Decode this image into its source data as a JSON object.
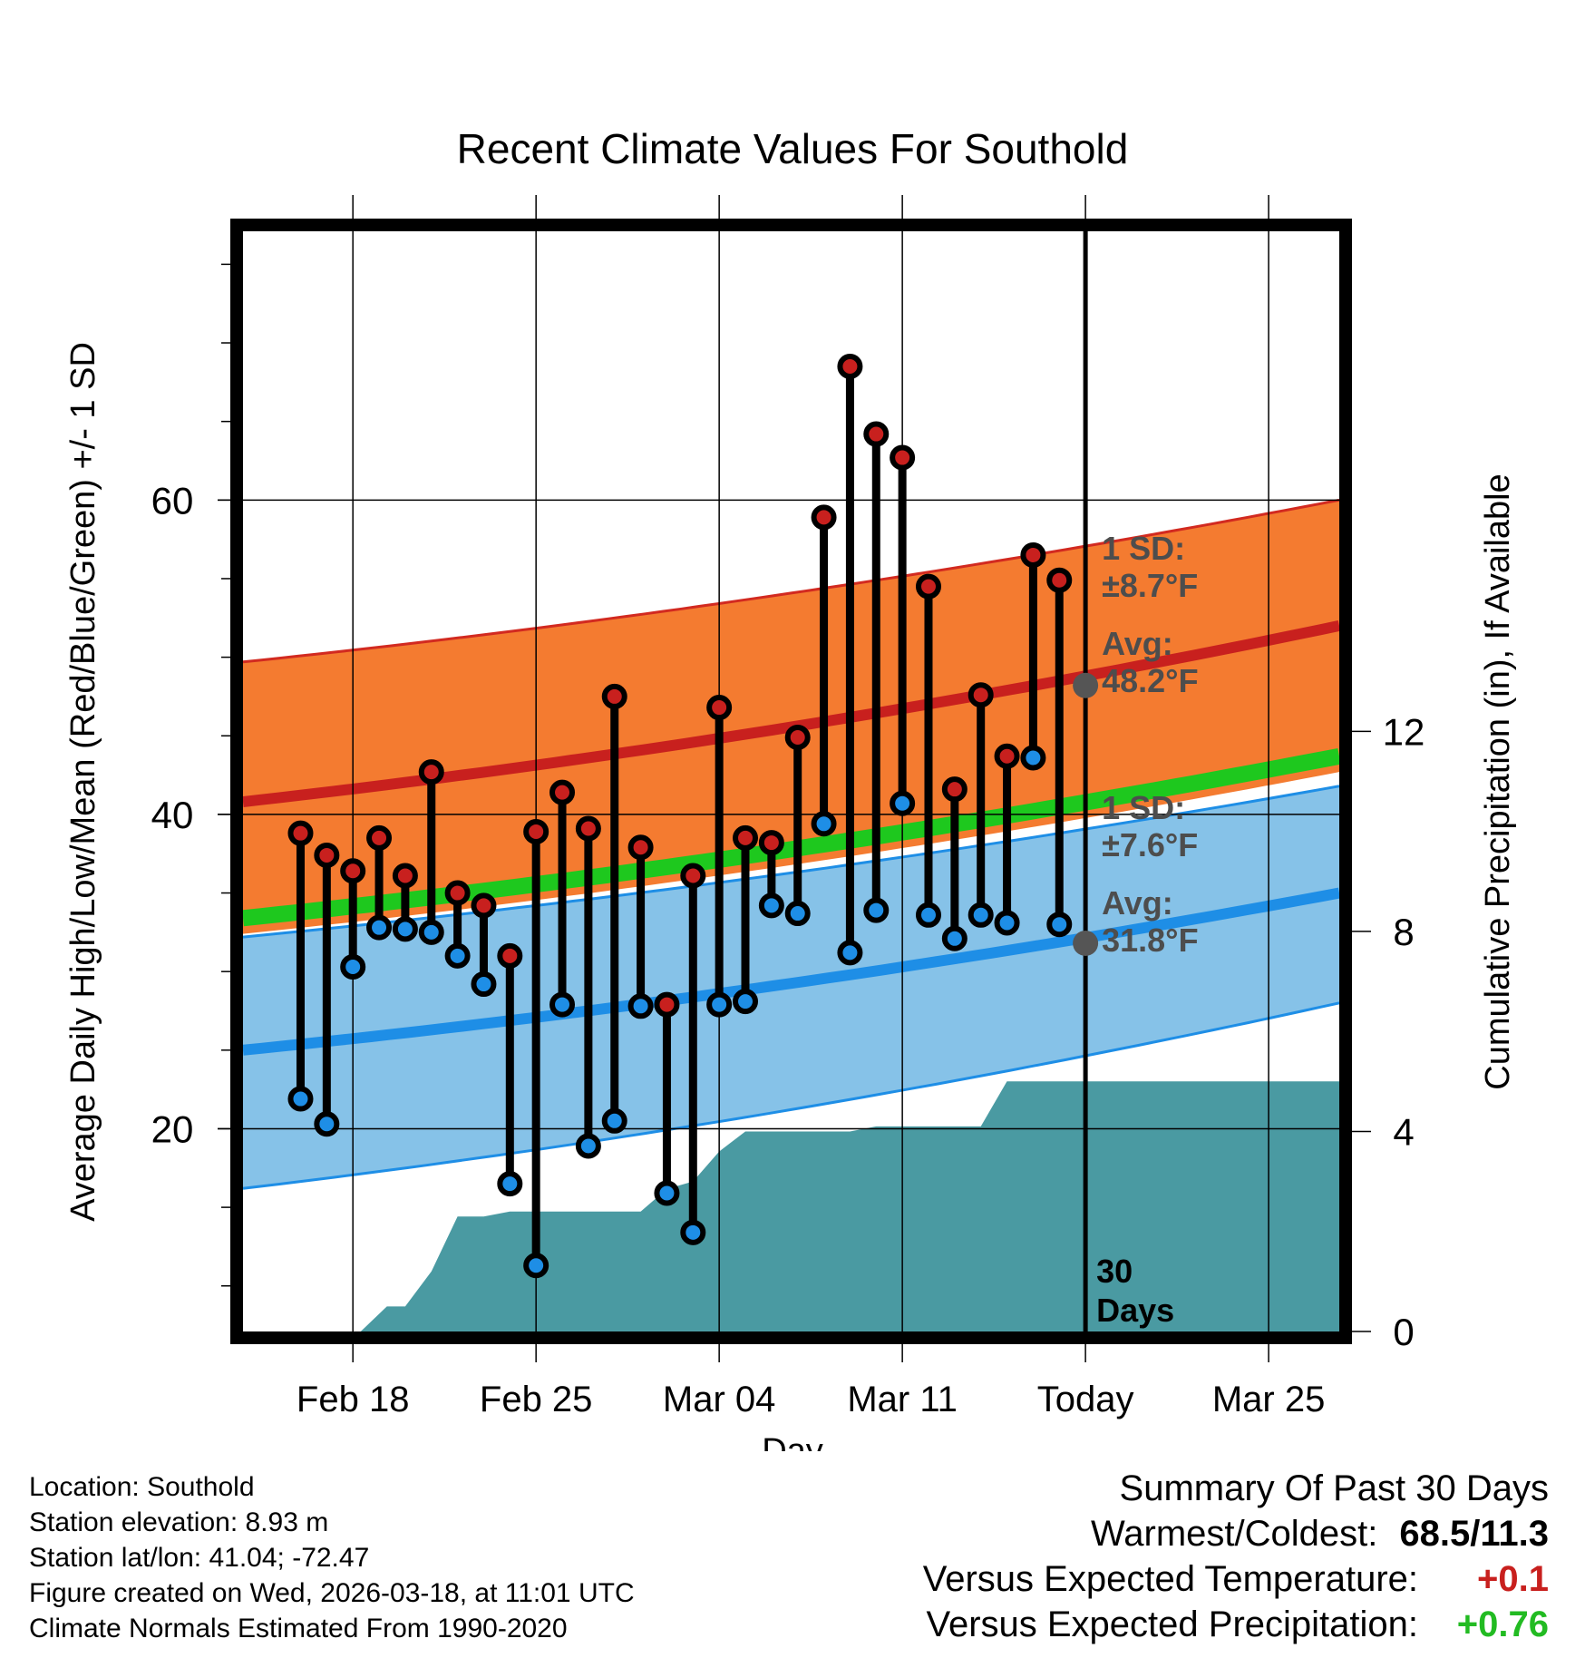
{
  "chart_data": {
    "type": "line",
    "title": "Recent Climate Values For Southold",
    "xlabel": "Day",
    "ylabel": "Average Daily High/Low/Mean (Red/Blue/Green) +/- 1 SD",
    "y2label": "Cumulative Precipitation (in), If Available",
    "ylim": [
      7.1,
      77.1
    ],
    "y2lim": [
      0,
      22.0
    ],
    "yticks": [
      20,
      40,
      60
    ],
    "y2ticks": [
      0,
      4,
      8,
      12
    ],
    "x_range_days": [
      -32.2,
      9.7
    ],
    "xticks": [
      {
        "day": -28,
        "label": "Feb 18"
      },
      {
        "day": -21,
        "label": "Feb 25"
      },
      {
        "day": -14,
        "label": "Mar 04"
      },
      {
        "day": -7,
        "label": "Mar 11"
      },
      {
        "day": 0,
        "label": "Today"
      },
      {
        "day": 7,
        "label": "Mar 25"
      }
    ],
    "normals": {
      "days": [
        -32.2,
        9.7
      ],
      "high_mean": [
        40.8,
        52.0
      ],
      "high_upper": [
        49.7,
        60.0
      ],
      "low_mean": [
        25.0,
        35.0
      ],
      "low_upper": [
        32.2,
        41.8
      ],
      "low_lower": [
        16.2,
        28.0
      ],
      "mean_mean": [
        33.4,
        43.7
      ]
    },
    "series": [
      {
        "name": "High",
        "color": "#c8201e",
        "x": [
          -30,
          -29,
          -28,
          -27,
          -26,
          -25,
          -24,
          -23,
          -22,
          -21,
          -20,
          -19,
          -18,
          -17,
          -16,
          -15,
          -14,
          -13,
          -12,
          -11,
          -10,
          -9,
          -8,
          -7,
          -6,
          -5,
          -4,
          -3,
          -2,
          -1
        ],
        "values": [
          38.8,
          37.4,
          36.4,
          38.5,
          36.1,
          42.7,
          35.0,
          34.2,
          31.0,
          38.9,
          41.4,
          39.1,
          47.5,
          37.9,
          27.9,
          36.1,
          46.8,
          38.5,
          38.2,
          44.9,
          58.9,
          68.5,
          64.2,
          62.7,
          54.5,
          41.6,
          47.6,
          43.7,
          56.5,
          54.9
        ]
      },
      {
        "name": "Low",
        "color": "#1e8ee6",
        "x": [
          -30,
          -29,
          -28,
          -27,
          -26,
          -25,
          -24,
          -23,
          -22,
          -21,
          -20,
          -19,
          -18,
          -17,
          -16,
          -15,
          -14,
          -13,
          -12,
          -11,
          -10,
          -9,
          -8,
          -7,
          -6,
          -5,
          -4,
          -3,
          -2,
          -1
        ],
        "values": [
          21.9,
          20.3,
          30.3,
          32.8,
          32.7,
          32.5,
          31.0,
          29.2,
          16.5,
          11.3,
          27.9,
          18.9,
          20.5,
          27.8,
          15.9,
          13.4,
          27.9,
          28.1,
          34.2,
          33.7,
          39.4,
          31.2,
          33.9,
          40.7,
          33.6,
          32.1,
          33.6,
          33.1,
          43.6,
          33.0
        ]
      },
      {
        "name": "Cumulative Precipitation",
        "color": "#4a9aa2",
        "x": [
          -27.7,
          -26.7,
          -26,
          -25,
          -24,
          -23,
          -22,
          -21,
          -20,
          -19,
          -18,
          -17,
          -16,
          -15,
          -14,
          -13,
          -12,
          -11,
          -10,
          -9,
          -8,
          -7,
          -6,
          -5,
          -4,
          -3,
          -2,
          -1,
          0,
          9.7
        ],
        "values": [
          0,
          0.5,
          0.5,
          1.2,
          2.3,
          2.3,
          2.4,
          2.4,
          2.4,
          2.4,
          2.4,
          2.4,
          2.85,
          3.0,
          3.6,
          4.0,
          4.0,
          4.0,
          4.0,
          4.0,
          4.1,
          4.1,
          4.1,
          4.1,
          4.1,
          5.0,
          5.0,
          5.0,
          5.0,
          5.0
        ]
      }
    ],
    "annotations": {
      "high_sd_label": "1 SD:",
      "high_sd_value": "±8.7°F",
      "high_avg_label": "Avg:",
      "high_avg_value": "48.2°F",
      "low_sd_label": "1 SD:",
      "low_sd_value": "±7.6°F",
      "low_avg_label": "Avg:",
      "low_avg_value": "31.8°F",
      "today_avg_high": 48.2,
      "today_avg_low": 31.8,
      "window_label_1": "30",
      "window_label_2": "Days"
    }
  },
  "info": {
    "location": "Location: Southold",
    "elevation": "Station elevation: 8.93 m",
    "latlon": "Station lat/lon: 41.04; -72.47",
    "created": "Figure created on Wed, 2026-03-18, at 11:01 UTC",
    "normals": "Climate Normals Estimated From 1990-2020"
  },
  "summary": {
    "title": "Summary Of Past 30 Days",
    "warm_cold_label": "Warmest/Coldest:",
    "warm_cold_value": "68.5/11.3",
    "temp_label": "Versus Expected Temperature:",
    "temp_value": "+0.1",
    "temp_color": "#c8201e",
    "precip_label": "Versus Expected Precipitation:",
    "precip_value": "+0.76",
    "precip_color": "#22bb22"
  }
}
